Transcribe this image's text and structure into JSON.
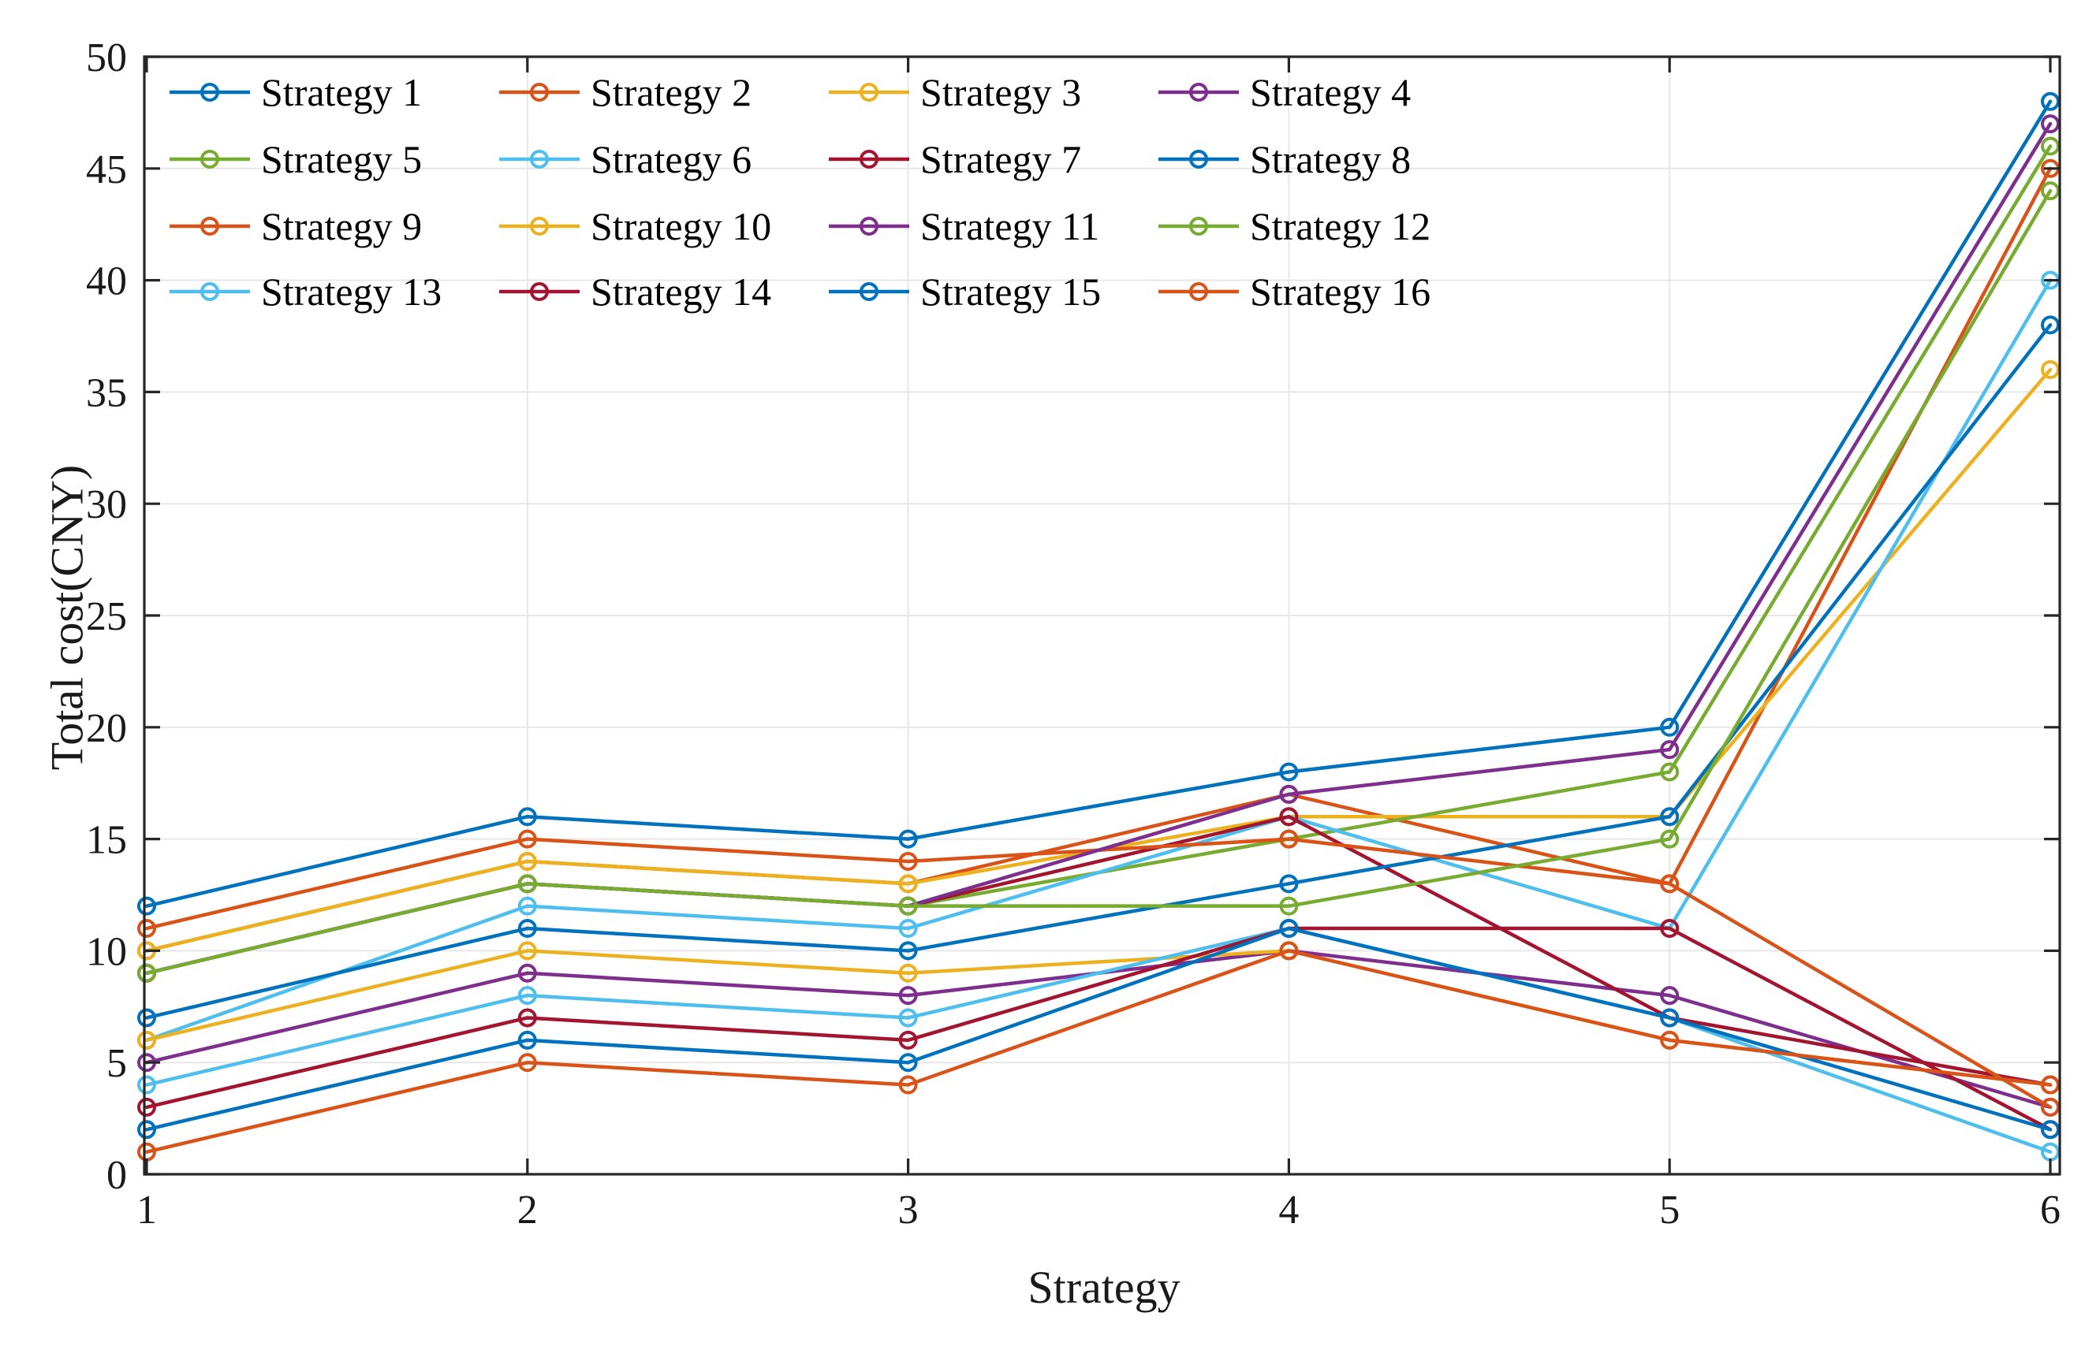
{
  "chart_data": {
    "type": "line",
    "title": "",
    "xlabel": "Strategy",
    "ylabel": "Total cost(CNY)",
    "x": [
      1,
      2,
      3,
      4,
      5,
      6
    ],
    "xlim": [
      1,
      6
    ],
    "ylim": [
      0,
      50
    ],
    "xticks": [
      "1",
      "2",
      "3",
      "4",
      "5",
      "6"
    ],
    "yticks": [
      "0",
      "5",
      "10",
      "15",
      "20",
      "25",
      "30",
      "35",
      "40",
      "45",
      "50"
    ],
    "grid": true,
    "legend_position": "top-left-inside",
    "legend_columns": 4,
    "axis_color": "#262626",
    "grid_color": "#e7e7e7",
    "background_color": "#ffffff",
    "marker": "open-circle",
    "series": [
      {
        "name": "Strategy 1",
        "color": "#0072BD",
        "values": [
          12,
          16,
          15,
          18,
          20,
          48
        ]
      },
      {
        "name": "Strategy 2",
        "color": "#D95319",
        "values": [
          10,
          14,
          13,
          17,
          13,
          45
        ]
      },
      {
        "name": "Strategy 3",
        "color": "#EDB120",
        "values": [
          10,
          14,
          13,
          16,
          16,
          36
        ]
      },
      {
        "name": "Strategy 4",
        "color": "#7E2F8E",
        "values": [
          5,
          9,
          8,
          10,
          8,
          3
        ]
      },
      {
        "name": "Strategy 5",
        "color": "#77AC30",
        "values": [
          9,
          13,
          12,
          15,
          18,
          46
        ]
      },
      {
        "name": "Strategy 6",
        "color": "#4DBEEE",
        "values": [
          6,
          12,
          11,
          16,
          11,
          40
        ]
      },
      {
        "name": "Strategy 7",
        "color": "#A2142F",
        "values": [
          9,
          13,
          12,
          16,
          7,
          4
        ]
      },
      {
        "name": "Strategy 8",
        "color": "#0072BD",
        "values": [
          7,
          11,
          10,
          13,
          16,
          38
        ]
      },
      {
        "name": "Strategy 9",
        "color": "#D95319",
        "values": [
          11,
          15,
          14,
          15,
          13,
          3
        ]
      },
      {
        "name": "Strategy 10",
        "color": "#EDB120",
        "values": [
          6,
          10,
          9,
          10,
          6,
          4
        ]
      },
      {
        "name": "Strategy 11",
        "color": "#7E2F8E",
        "values": [
          9,
          13,
          12,
          17,
          19,
          47
        ]
      },
      {
        "name": "Strategy 12",
        "color": "#77AC30",
        "values": [
          9,
          13,
          12,
          12,
          15,
          44
        ]
      },
      {
        "name": "Strategy 13",
        "color": "#4DBEEE",
        "values": [
          4,
          8,
          7,
          11,
          7,
          1
        ]
      },
      {
        "name": "Strategy 14",
        "color": "#A2142F",
        "values": [
          3,
          7,
          6,
          11,
          11,
          2
        ]
      },
      {
        "name": "Strategy 15",
        "color": "#0072BD",
        "values": [
          2,
          6,
          5,
          11,
          7,
          2
        ]
      },
      {
        "name": "Strategy 16",
        "color": "#D95319",
        "values": [
          1,
          5,
          4,
          10,
          6,
          4
        ]
      }
    ]
  }
}
